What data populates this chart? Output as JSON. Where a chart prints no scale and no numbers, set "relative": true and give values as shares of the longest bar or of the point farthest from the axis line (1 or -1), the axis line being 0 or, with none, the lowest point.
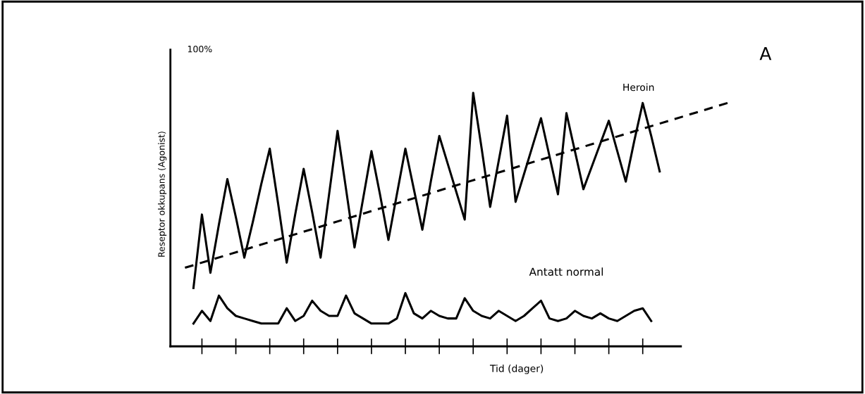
{
  "chart_data": {
    "type": "line",
    "relative": true,
    "ylabel": "Reseptor okkupans (Agonist)",
    "xlabel": "Tid (dager)",
    "annotations": [
      "100%",
      "A"
    ],
    "categories": [
      null,
      null,
      null,
      null,
      null,
      null,
      null,
      null,
      null,
      null,
      null,
      null,
      null,
      null,
      null,
      null,
      null,
      null,
      null,
      null,
      null,
      null,
      null,
      null,
      null,
      null,
      null,
      null,
      null,
      null,
      null,
      null,
      null,
      null,
      null,
      null,
      null,
      null,
      null,
      null,
      null,
      null,
      null,
      null,
      null,
      null,
      null,
      null,
      null,
      null,
      null,
      null,
      null,
      null,
      null,
      null,
      null,
      null,
      null,
      null,
      null,
      null,
      null,
      null,
      null,
      null
    ],
    "series": [
      {
        "name": "Heroin",
        "color": "#000000",
        "line_style": "solid",
        "values": [
          null,
          null,
          0.23,
          0.52,
          0.29,
          0.48,
          0.66,
          0.51,
          0.35,
          0.49,
          0.64,
          0.78,
          0.56,
          0.33,
          0.52,
          0.7,
          0.53,
          0.35,
          0.6,
          0.85,
          0.62,
          0.39,
          0.58,
          0.77,
          0.6,
          0.42,
          0.6,
          0.78,
          0.62,
          0.46,
          0.65,
          0.83,
          0.72,
          0.61,
          0.5,
          1.0,
          0.78,
          0.55,
          0.73,
          0.91,
          0.57,
          0.68,
          0.79,
          0.9,
          0.75,
          0.6,
          0.92,
          0.77,
          0.62,
          0.71,
          0.8,
          0.89,
          0.77,
          0.65,
          0.81,
          0.96,
          0.83,
          0.69,
          null,
          null,
          null,
          null,
          null,
          null,
          null,
          null
        ]
      },
      {
        "color": "#000000",
        "line_style": "dashed",
        "values": [
          null,
          0.31,
          null,
          null,
          null,
          null,
          null,
          null,
          null,
          null,
          null,
          null,
          null,
          null,
          null,
          null,
          null,
          null,
          null,
          null,
          null,
          null,
          null,
          null,
          null,
          null,
          null,
          null,
          null,
          null,
          null,
          null,
          null,
          null,
          null,
          null,
          null,
          null,
          null,
          null,
          null,
          null,
          null,
          null,
          null,
          null,
          null,
          null,
          null,
          null,
          null,
          null,
          null,
          null,
          null,
          null,
          null,
          null,
          null,
          null,
          null,
          null,
          null,
          null,
          null,
          0.96
        ]
      },
      {
        "name": "Antatt normal",
        "color": "#000000",
        "line_style": "solid",
        "values": [
          null,
          null,
          0.09,
          0.14,
          0.1,
          0.2,
          0.15,
          0.12,
          0.11,
          0.1,
          0.09,
          0.09,
          0.09,
          0.15,
          0.1,
          0.12,
          0.18,
          0.14,
          0.12,
          0.12,
          0.2,
          0.13,
          0.11,
          0.09,
          0.09,
          0.09,
          0.11,
          0.21,
          0.13,
          0.11,
          0.14,
          0.12,
          0.11,
          0.11,
          0.19,
          0.14,
          0.12,
          0.11,
          0.14,
          0.12,
          0.1,
          0.12,
          0.15,
          0.18,
          0.11,
          0.1,
          0.11,
          0.14,
          0.12,
          0.11,
          0.13,
          0.11,
          0.1,
          0.12,
          0.14,
          0.15,
          0.1,
          null,
          null,
          null,
          null,
          null,
          null,
          null,
          null,
          null
        ]
      }
    ],
    "grid": false,
    "legend": false,
    "marker": "none"
  }
}
